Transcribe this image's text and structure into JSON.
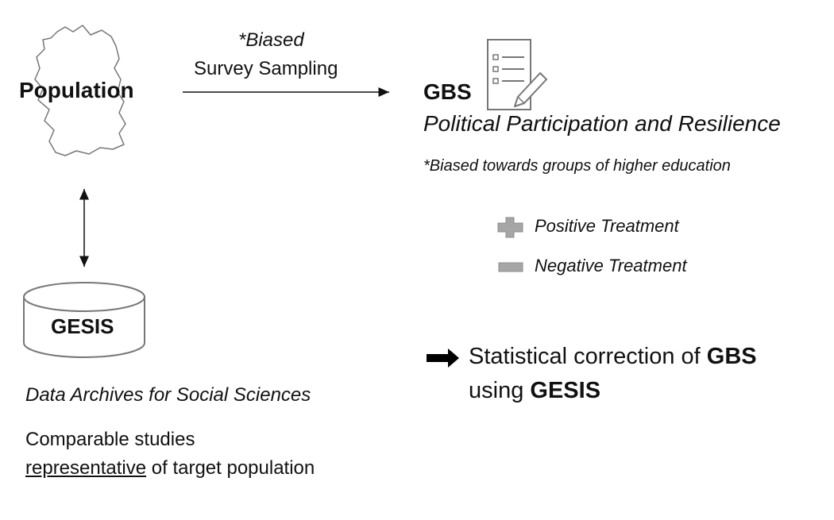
{
  "population": {
    "label": "Population",
    "icon": "germany-map-icon"
  },
  "sampling_arrow": {
    "line1": "*Biased",
    "line2": "Survey Sampling"
  },
  "gbs": {
    "label": "GBS",
    "icon": "survey-form-icon",
    "title": "Political Participation and Resilience",
    "note": "*Biased towards groups of higher education"
  },
  "legend": {
    "positive": {
      "label": "Positive Treatment",
      "icon": "plus-icon"
    },
    "negative": {
      "label": "Negative Treatment",
      "icon": "minus-icon"
    }
  },
  "gesis": {
    "label": "GESIS",
    "icon": "database-icon",
    "caption": "Data Archives for Social Sciences",
    "comparable_line1": "Comparable studies",
    "comparable_underlined": "representative",
    "comparable_rest": " of target population"
  },
  "correction": {
    "prefix": "Statistical correction of ",
    "gbs": "GBS",
    "line2_prefix": "using ",
    "gesis": "GESIS"
  },
  "colors": {
    "icon_gray": "#a6a6a6",
    "outline": "#777777",
    "text": "#111111"
  }
}
